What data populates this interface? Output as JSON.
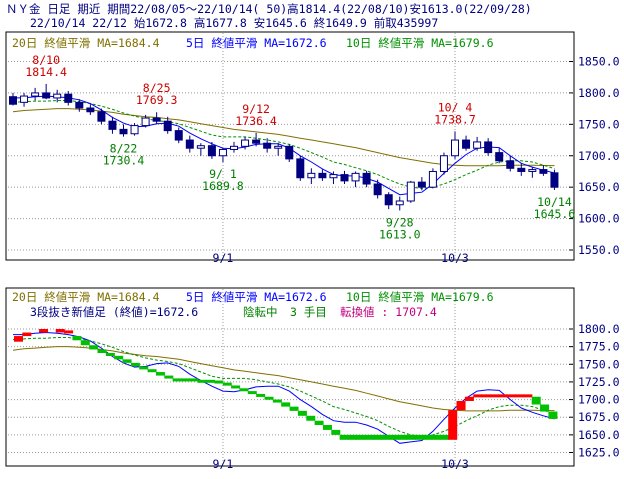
{
  "header": {
    "line1": "ＮＹ金 日足 期近 期間22/08/05～22/10/14( 50)高1814.4(22/08/10)安1613.0(22/09/28)",
    "line2": "22/10/14 22/12 始1672.8 高1677.8 安1645.6 終1649.9 前取435997"
  },
  "colors": {
    "up_candle": "#ffffff",
    "down_candle": "#000080",
    "ma20": "#807000",
    "ma5": "#0000ff",
    "ma10": "#009000",
    "high_label": "#d00000",
    "low_label": "#008000",
    "brick_up": "#ff0000",
    "brick_down": "#00c000",
    "grid": "#9a9a9a"
  },
  "chart_data": [
    {
      "type": "candlestick",
      "legend": [
        {
          "id": "ma20",
          "text": "20日 終値平滑 MA=1684.4"
        },
        {
          "id": "ma5",
          "text": "5日 終値平滑 MA=1672.6"
        },
        {
          "id": "ma10",
          "text": "10日 終値平滑 MA=1679.6"
        }
      ],
      "ylim": [
        1550,
        1850
      ],
      "yticks": [
        "1850.0",
        "1800.0",
        "1750.0",
        "1700.0",
        "1650.0",
        "1600.0",
        "1550.0"
      ],
      "xtick_labels": [
        {
          "label": "9/1",
          "index": 19
        },
        {
          "label": "10/3",
          "index": 40
        }
      ],
      "ohlc": [
        [
          1794,
          1800,
          1780,
          1782
        ],
        [
          1785,
          1800,
          1778,
          1795
        ],
        [
          1795,
          1808,
          1788,
          1800
        ],
        [
          1800,
          1814.4,
          1790,
          1792
        ],
        [
          1792,
          1805,
          1785,
          1798
        ],
        [
          1798,
          1803,
          1780,
          1785
        ],
        [
          1785,
          1790,
          1770,
          1776
        ],
        [
          1776,
          1782,
          1765,
          1770
        ],
        [
          1770,
          1775,
          1750,
          1755
        ],
        [
          1755,
          1762,
          1735,
          1742
        ],
        [
          1742,
          1750,
          1730.4,
          1735
        ],
        [
          1735,
          1752,
          1732,
          1748
        ],
        [
          1748,
          1765,
          1745,
          1760
        ],
        [
          1760,
          1769.3,
          1750,
          1755
        ],
        [
          1755,
          1762,
          1735,
          1740
        ],
        [
          1740,
          1745,
          1720,
          1725
        ],
        [
          1725,
          1732,
          1705,
          1712
        ],
        [
          1712,
          1720,
          1700,
          1716
        ],
        [
          1716,
          1722,
          1695,
          1700
        ],
        [
          1700,
          1712,
          1689.8,
          1710
        ],
        [
          1710,
          1722,
          1705,
          1715
        ],
        [
          1715,
          1730,
          1710,
          1725
        ],
        [
          1725,
          1736.4,
          1715,
          1720
        ],
        [
          1720,
          1728,
          1705,
          1712
        ],
        [
          1712,
          1720,
          1700,
          1715
        ],
        [
          1715,
          1718,
          1690,
          1695
        ],
        [
          1695,
          1700,
          1660,
          1665
        ],
        [
          1665,
          1680,
          1655,
          1672
        ],
        [
          1672,
          1678,
          1660,
          1665
        ],
        [
          1665,
          1675,
          1655,
          1670
        ],
        [
          1670,
          1676,
          1655,
          1660
        ],
        [
          1660,
          1675,
          1650,
          1672
        ],
        [
          1672,
          1676,
          1650,
          1655
        ],
        [
          1655,
          1662,
          1632,
          1638
        ],
        [
          1638,
          1642,
          1615,
          1622
        ],
        [
          1622,
          1635,
          1613,
          1628
        ],
        [
          1628,
          1660,
          1625,
          1658
        ],
        [
          1658,
          1666,
          1645,
          1650
        ],
        [
          1650,
          1680,
          1648,
          1675
        ],
        [
          1675,
          1705,
          1670,
          1700
        ],
        [
          1700,
          1738.7,
          1695,
          1725
        ],
        [
          1725,
          1732,
          1708,
          1712
        ],
        [
          1712,
          1730,
          1708,
          1722
        ],
        [
          1722,
          1728,
          1700,
          1705
        ],
        [
          1705,
          1712,
          1688,
          1692
        ],
        [
          1692,
          1700,
          1675,
          1680
        ],
        [
          1680,
          1688,
          1668,
          1675
        ],
        [
          1675,
          1682,
          1665,
          1678
        ],
        [
          1678,
          1685,
          1668,
          1672
        ],
        [
          1672.8,
          1677.8,
          1645.6,
          1649.9
        ]
      ],
      "ma20": [
        1770,
        1772,
        1773,
        1774,
        1775,
        1775,
        1774,
        1773,
        1771,
        1769,
        1766,
        1764,
        1762,
        1761,
        1759,
        1757,
        1754,
        1751,
        1748,
        1745,
        1742,
        1740,
        1738,
        1736,
        1734,
        1731,
        1728,
        1725,
        1722,
        1719,
        1716,
        1713,
        1709,
        1705,
        1701,
        1697,
        1694,
        1691,
        1688,
        1686,
        1685,
        1684,
        1684,
        1684,
        1684,
        1685,
        1685,
        1685,
        1684.5,
        1684.4
      ],
      "ma5": [
        1792,
        1792,
        1794,
        1795,
        1794,
        1792,
        1789,
        1783,
        1773,
        1761,
        1752,
        1746,
        1747,
        1751,
        1752,
        1747,
        1736,
        1727,
        1719,
        1712,
        1711,
        1714,
        1718,
        1719,
        1719,
        1712,
        1700,
        1690,
        1679,
        1670,
        1668,
        1668,
        1664,
        1658,
        1648,
        1638,
        1640,
        1642,
        1655,
        1672,
        1688,
        1702,
        1712,
        1714,
        1713,
        1700,
        1688,
        1682,
        1677,
        1672.6
      ],
      "ma10": [
        1785,
        1786,
        1787,
        1787,
        1788,
        1788,
        1786,
        1783,
        1779,
        1774,
        1768,
        1763,
        1759,
        1756,
        1754,
        1751,
        1745,
        1739,
        1733,
        1730,
        1730,
        1730,
        1728,
        1725,
        1722,
        1718,
        1712,
        1705,
        1698,
        1690,
        1686,
        1681,
        1676,
        1670,
        1662,
        1655,
        1650,
        1648,
        1650,
        1655,
        1662,
        1670,
        1677,
        1685,
        1690,
        1692,
        1692,
        1690,
        1685,
        1679.6
      ],
      "annotations": [
        {
          "kind": "high",
          "index": 3,
          "value": 1814.4,
          "date": "8/10",
          "text": "1814.4"
        },
        {
          "kind": "high",
          "index": 13,
          "value": 1769.3,
          "date": "8/25",
          "text": "1769.3"
        },
        {
          "kind": "high",
          "index": 22,
          "value": 1736.4,
          "date": "9/12",
          "text": "1736.4"
        },
        {
          "kind": "high",
          "index": 40,
          "value": 1738.7,
          "date": "10/ 4",
          "text": "1738.7"
        },
        {
          "kind": "low",
          "index": 10,
          "value": 1730.4,
          "date": "8/22",
          "text": "1730.4"
        },
        {
          "kind": "low",
          "index": 19,
          "value": 1689.8,
          "date": "9/ 1",
          "text": "1689.8"
        },
        {
          "kind": "low",
          "index": 35,
          "value": 1613.0,
          "date": "9/28",
          "text": "1613.0"
        },
        {
          "kind": "low",
          "index": 49,
          "value": 1645.6,
          "date": "10/14",
          "text": "1645.6"
        }
      ]
    },
    {
      "type": "three-line-break",
      "legend": [
        {
          "id": "ma20",
          "text": "20日 終値平滑 MA=1684.4"
        },
        {
          "id": "ma5",
          "text": "5日 終値平滑 MA=1672.6"
        },
        {
          "id": "ma10",
          "text": "10日 終値平滑 MA=1679.6"
        }
      ],
      "status": [
        {
          "id": "title",
          "text": "3段抜き新値足 (終値)=1672.6"
        },
        {
          "id": "state",
          "text": "陰転中"
        },
        {
          "id": "count",
          "text": "3 手目"
        },
        {
          "id": "reversal",
          "text": "転換値 : 1707.4"
        }
      ],
      "ylim": [
        1625,
        1800
      ],
      "yticks": [
        "1800.0",
        "1775.0",
        "1750.0",
        "1725.0",
        "1700.0",
        "1675.0",
        "1650.0",
        "1625.0"
      ],
      "xtick_labels": [
        {
          "label": "9/1",
          "index": 19
        },
        {
          "label": "10/3",
          "index": 40
        }
      ],
      "bricks": [
        {
          "index": 0,
          "from": 1782,
          "to": 1790,
          "dir": "up"
        },
        {
          "index": 1,
          "from": 1790,
          "to": 1795,
          "dir": "up"
        },
        {
          "index": 3,
          "from": 1795,
          "to": 1800,
          "dir": "up"
        },
        {
          "index": 5,
          "from": 1795,
          "to": 1800,
          "dir": "up"
        },
        {
          "index": 6,
          "from": 1795,
          "to": 1798,
          "dir": "up"
        },
        {
          "index": 7,
          "from": 1790,
          "to": 1784,
          "dir": "down"
        },
        {
          "index": 8,
          "from": 1784,
          "to": 1777,
          "dir": "down"
        },
        {
          "index": 9,
          "from": 1777,
          "to": 1771,
          "dir": "down"
        },
        {
          "index": 10,
          "from": 1771,
          "to": 1766,
          "dir": "down"
        },
        {
          "index": 11,
          "from": 1766,
          "to": 1762,
          "dir": "down"
        },
        {
          "index": 12,
          "from": 1762,
          "to": 1757,
          "dir": "down"
        },
        {
          "index": 13,
          "from": 1757,
          "to": 1752,
          "dir": "down"
        },
        {
          "index": 14,
          "from": 1752,
          "to": 1747,
          "dir": "down"
        },
        {
          "index": 15,
          "from": 1747,
          "to": 1743,
          "dir": "down"
        },
        {
          "index": 16,
          "from": 1743,
          "to": 1739,
          "dir": "down"
        },
        {
          "index": 17,
          "from": 1739,
          "to": 1734,
          "dir": "down"
        },
        {
          "index": 18,
          "from": 1734,
          "to": 1730,
          "dir": "down"
        },
        {
          "index": 19,
          "from": 1730,
          "to": 1727,
          "dir": "down"
        },
        {
          "index": 20,
          "from": 1730,
          "to": 1727,
          "dir": "down"
        },
        {
          "index": 21,
          "from": 1730,
          "to": 1727,
          "dir": "down"
        },
        {
          "index": 22,
          "from": 1728,
          "to": 1724,
          "dir": "down"
        },
        {
          "index": 23,
          "from": 1728,
          "to": 1724,
          "dir": "down"
        },
        {
          "index": 24,
          "from": 1727,
          "to": 1723,
          "dir": "down"
        },
        {
          "index": 25,
          "from": 1724,
          "to": 1720,
          "dir": "down"
        },
        {
          "index": 26,
          "from": 1720,
          "to": 1716,
          "dir": "down"
        },
        {
          "index": 27,
          "from": 1716,
          "to": 1712,
          "dir": "down"
        },
        {
          "index": 28,
          "from": 1712,
          "to": 1708,
          "dir": "down"
        },
        {
          "index": 29,
          "from": 1708,
          "to": 1704,
          "dir": "down"
        },
        {
          "index": 30,
          "from": 1704,
          "to": 1700,
          "dir": "down"
        },
        {
          "index": 31,
          "from": 1700,
          "to": 1696,
          "dir": "down"
        },
        {
          "index": 32,
          "from": 1696,
          "to": 1690,
          "dir": "down"
        },
        {
          "index": 33,
          "from": 1690,
          "to": 1684,
          "dir": "down"
        },
        {
          "index": 34,
          "from": 1684,
          "to": 1677,
          "dir": "down"
        },
        {
          "index": 35,
          "from": 1677,
          "to": 1670,
          "dir": "down"
        },
        {
          "index": 36,
          "from": 1670,
          "to": 1664,
          "dir": "down"
        },
        {
          "index": 37,
          "from": 1664,
          "to": 1657,
          "dir": "down"
        },
        {
          "index": 38,
          "from": 1657,
          "to": 1650,
          "dir": "down"
        },
        {
          "index": 39,
          "from": 1650,
          "to": 1643,
          "dir": "down"
        },
        {
          "index": 40,
          "from": 1650,
          "to": 1643,
          "dir": "down"
        },
        {
          "index": 41,
          "from": 1650,
          "to": 1643,
          "dir": "down"
        },
        {
          "index": 42,
          "from": 1650,
          "to": 1643,
          "dir": "down"
        },
        {
          "index": 43,
          "from": 1650,
          "to": 1643,
          "dir": "down"
        },
        {
          "index": 44,
          "from": 1650,
          "to": 1643,
          "dir": "down"
        },
        {
          "index": 45,
          "from": 1650,
          "to": 1643,
          "dir": "down"
        },
        {
          "index": 46,
          "from": 1650,
          "to": 1643,
          "dir": "down"
        },
        {
          "index": 47,
          "from": 1650,
          "to": 1643,
          "dir": "down"
        },
        {
          "index": 48,
          "from": 1650,
          "to": 1643,
          "dir": "down"
        },
        {
          "index": 49,
          "from": 1650,
          "to": 1643,
          "dir": "down"
        },
        {
          "index": 50,
          "from": 1650,
          "to": 1643,
          "dir": "down"
        },
        {
          "index": 51,
          "from": 1650,
          "to": 1643,
          "dir": "down"
        },
        {
          "index": 52,
          "from": 1643,
          "to": 1685,
          "dir": "up"
        },
        {
          "index": 53,
          "from": 1685,
          "to": 1698,
          "dir": "up"
        },
        {
          "index": 54,
          "from": 1698,
          "to": 1704,
          "dir": "up"
        },
        {
          "index": 55,
          "from": 1704,
          "to": 1707.4,
          "dir": "up"
        },
        {
          "index": 56,
          "from": 1704,
          "to": 1707.4,
          "dir": "up"
        },
        {
          "index": 57,
          "from": 1704,
          "to": 1707.4,
          "dir": "up"
        },
        {
          "index": 58,
          "from": 1704,
          "to": 1707.4,
          "dir": "up"
        },
        {
          "index": 59,
          "from": 1704,
          "to": 1707.4,
          "dir": "up"
        },
        {
          "index": 60,
          "from": 1704,
          "to": 1707.4,
          "dir": "up"
        },
        {
          "index": 61,
          "from": 1704,
          "to": 1707.4,
          "dir": "up"
        },
        {
          "index": 62,
          "from": 1704,
          "to": 1693,
          "dir": "down"
        },
        {
          "index": 63,
          "from": 1693,
          "to": 1683,
          "dir": "down"
        },
        {
          "index": 64,
          "from": 1683,
          "to": 1672.6,
          "dir": "down"
        }
      ],
      "ma20": [
        1770,
        1772,
        1773,
        1774,
        1775,
        1775,
        1774,
        1773,
        1771,
        1769,
        1766,
        1764,
        1762,
        1761,
        1759,
        1757,
        1754,
        1751,
        1748,
        1745,
        1742,
        1740,
        1738,
        1736,
        1734,
        1731,
        1728,
        1725,
        1722,
        1719,
        1716,
        1713,
        1709,
        1705,
        1701,
        1697,
        1694,
        1691,
        1688,
        1686,
        1685,
        1684,
        1684,
        1684,
        1684,
        1685,
        1685,
        1685,
        1684.5,
        1684.4
      ],
      "ma5": [
        1792,
        1792,
        1794,
        1795,
        1794,
        1792,
        1789,
        1783,
        1773,
        1761,
        1752,
        1746,
        1747,
        1751,
        1752,
        1747,
        1736,
        1727,
        1719,
        1712,
        1711,
        1714,
        1718,
        1719,
        1719,
        1712,
        1700,
        1690,
        1679,
        1670,
        1668,
        1668,
        1664,
        1658,
        1648,
        1638,
        1640,
        1642,
        1655,
        1672,
        1688,
        1702,
        1712,
        1714,
        1713,
        1700,
        1688,
        1682,
        1677,
        1672.6
      ],
      "ma10": [
        1785,
        1786,
        1787,
        1787,
        1788,
        1788,
        1786,
        1783,
        1779,
        1774,
        1768,
        1763,
        1759,
        1756,
        1754,
        1751,
        1745,
        1739,
        1733,
        1730,
        1730,
        1730,
        1728,
        1725,
        1722,
        1718,
        1712,
        1705,
        1698,
        1690,
        1686,
        1681,
        1676,
        1670,
        1662,
        1655,
        1650,
        1648,
        1650,
        1655,
        1662,
        1670,
        1677,
        1685,
        1690,
        1692,
        1692,
        1690,
        1685,
        1679.6
      ]
    }
  ]
}
